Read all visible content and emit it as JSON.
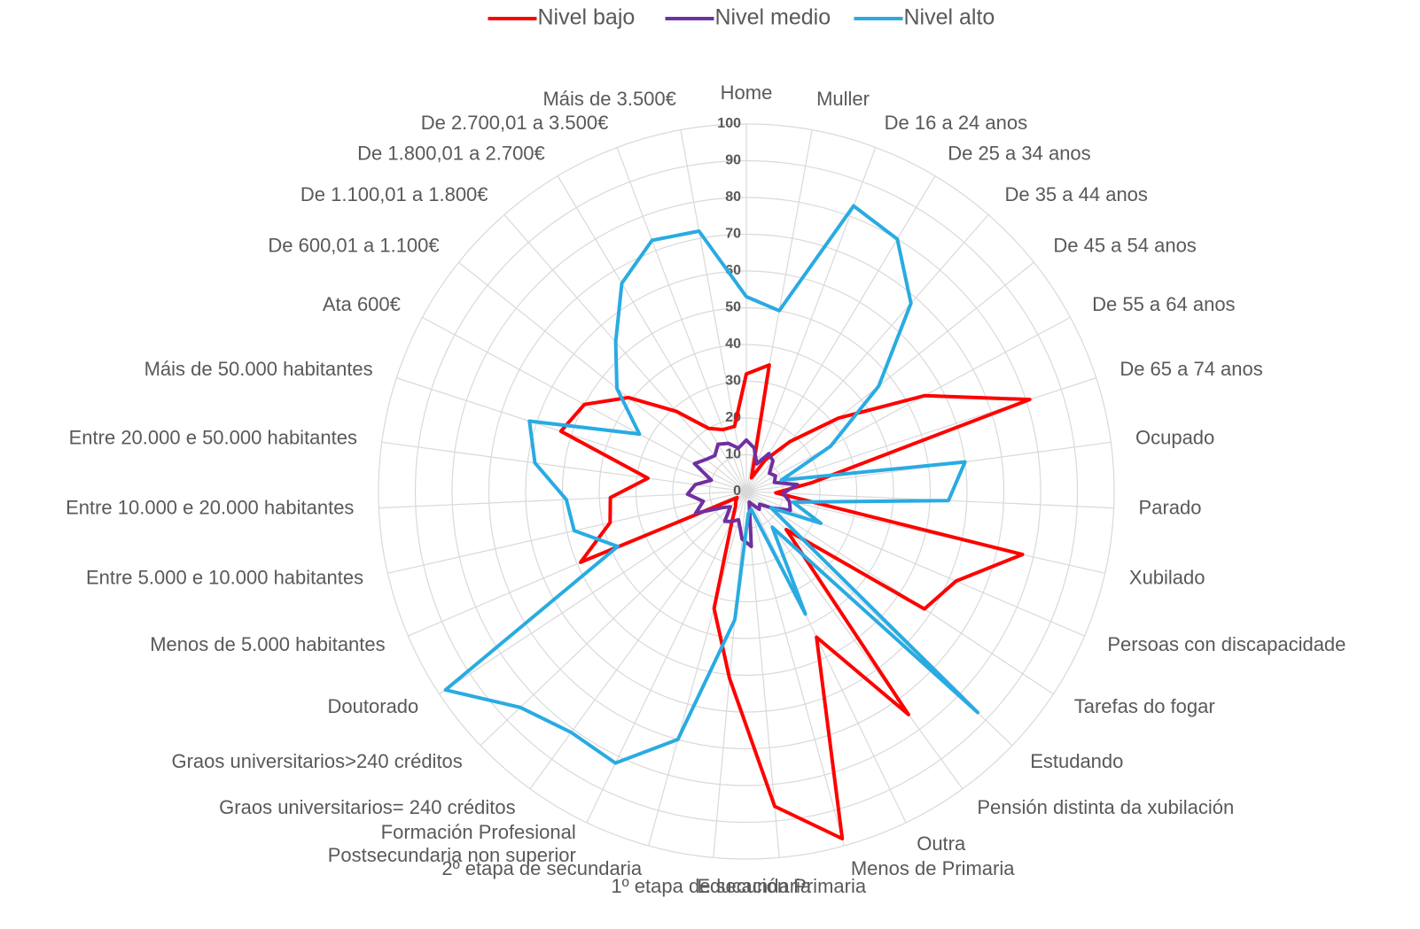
{
  "chart_data": {
    "type": "radar",
    "categories": [
      "Home",
      "Muller",
      "De 16 a 24 anos",
      "De 25 a 34 anos",
      "De 35 a 44 anos",
      "De 45 a 54 anos",
      "De 55 a 64 anos",
      "De 65 a 74 anos",
      "Ocupado",
      "Parado",
      "Xubilado",
      "Persoas con discapacidade",
      "Tarefas do fogar",
      "Estudando",
      "Pensión distinta da xubilación",
      "Outra",
      "Menos de Primaria",
      "Educación Primaria",
      "1º etapa de secundaria",
      "2º etapa de secundaria",
      "Formación Profesional\nPostsecundaria non superior",
      "Graos universitarios= 240 créditos",
      "Graos universitarios>240 créditos",
      "Doutorado",
      "Menos de 5.000 habitantes",
      "Entre 5.000 e 10.000 habitantes",
      "Entre 10.000 e 20.000 habitantes",
      "Entre 20.000 e 50.000 habitantes",
      "Máis de 50.000 habitantes",
      "Ata 600€",
      "De 600,01 a 1.100€",
      "De 1.100,01 a 1.800€",
      "De 1.800,01 a 2.700€",
      "De 2.700,01 a 3.500€",
      "Máis de 3.500€"
    ],
    "series": [
      {
        "name": "Nivel bajo",
        "color": "#ff0000",
        "values": [
          32,
          35,
          4,
          10,
          18,
          32,
          55,
          81,
          18,
          8,
          77,
          62,
          58,
          15,
          75,
          44,
          98,
          86,
          51,
          33,
          9,
          5,
          4,
          3,
          49,
          38,
          37,
          27,
          53,
          50,
          41,
          29,
          20,
          18,
          18
        ]
      },
      {
        "name": "Nivel medio",
        "color": "#7030a0",
        "values": [
          14,
          12,
          8,
          12,
          11,
          8,
          9,
          8,
          14,
          10,
          12,
          13,
          8,
          5,
          6,
          4,
          3,
          15,
          13,
          8,
          9,
          10,
          6,
          8,
          15,
          12,
          16,
          14,
          10,
          16,
          14,
          13,
          15,
          14,
          12
        ]
      },
      {
        "name": "Nivel alto",
        "color": "#29abe2",
        "values": [
          53,
          50,
          83,
          80,
          68,
          46,
          26,
          10,
          60,
          55,
          13,
          22,
          8,
          87,
          12,
          37,
          5,
          6,
          35,
          70,
          82,
          81,
          85,
          98,
          38,
          48,
          49,
          58,
          62,
          33,
          45,
          54,
          66,
          73,
          72
        ]
      }
    ],
    "ylim": [
      0,
      100
    ],
    "yticks": [
      0,
      10,
      20,
      30,
      40,
      50,
      60,
      70,
      80,
      90,
      100
    ],
    "grid": true,
    "legend": "top"
  }
}
